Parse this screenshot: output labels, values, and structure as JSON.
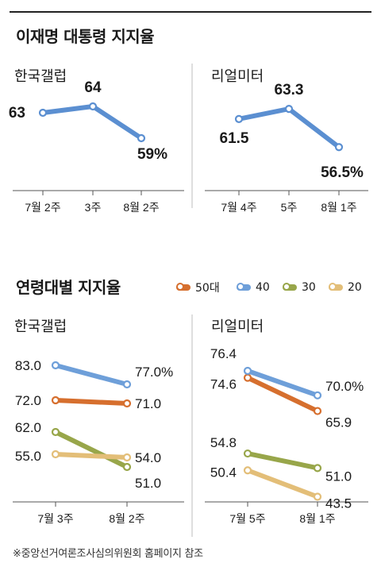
{
  "section1": {
    "title": "이재명 대통령 지지율"
  },
  "section2": {
    "title": "연령대별 지지율"
  },
  "legend": [
    {
      "label": "50대",
      "color": "#d66f2e"
    },
    {
      "label": "40",
      "color": "#6e9fd9"
    },
    {
      "label": "30",
      "color": "#98a64a"
    },
    {
      "label": "20",
      "color": "#e3be78"
    }
  ],
  "source": "※중앙선거여론조사심의위원회 홈페이지 참조",
  "chart_data": [
    {
      "type": "line",
      "title": "한국갤럽",
      "categories": [
        "7월 2주",
        "3주",
        "8월 2주"
      ],
      "series": [
        {
          "values": [
            63,
            64,
            59
          ],
          "labels": [
            "63",
            "64",
            "59%"
          ]
        }
      ],
      "ylim": [
        55,
        66
      ],
      "line_color": "#5b8fd1"
    },
    {
      "type": "line",
      "title": "리얼미터",
      "categories": [
        "7월 4주",
        "5주",
        "8월 1주"
      ],
      "series": [
        {
          "values": [
            61.5,
            63.3,
            56.5
          ],
          "labels": [
            "61.5",
            "63.3",
            "56.5%"
          ]
        }
      ],
      "ylim": [
        53,
        66
      ],
      "line_color": "#5b8fd1"
    },
    {
      "type": "line",
      "title": "한국갤럽",
      "categories": [
        "7월 3주",
        "8월 2주"
      ],
      "series": [
        {
          "name": "50대",
          "values": [
            72.0,
            71.0
          ],
          "labels": [
            "72.0",
            "71.0"
          ]
        },
        {
          "name": "40",
          "values": [
            83.0,
            77.0
          ],
          "labels": [
            "83.0",
            "77.0%"
          ]
        },
        {
          "name": "30",
          "values": [
            62.0,
            51.0
          ],
          "labels": [
            "62.0",
            "51.0"
          ]
        },
        {
          "name": "20",
          "values": [
            55.0,
            54.0
          ],
          "labels": [
            "55.0",
            "54.0"
          ]
        }
      ],
      "ylim": [
        45,
        88
      ]
    },
    {
      "type": "line",
      "title": "리얼미터",
      "categories": [
        "7월 5주",
        "8월 1주"
      ],
      "series": [
        {
          "name": "50대",
          "values": [
            74.6,
            65.9
          ],
          "labels": [
            "74.6",
            "65.9"
          ]
        },
        {
          "name": "40",
          "values": [
            76.4,
            70.0
          ],
          "labels": [
            "76.4",
            "70.0%"
          ]
        },
        {
          "name": "30",
          "values": [
            54.8,
            51.0
          ],
          "labels": [
            "54.8",
            "51.0"
          ]
        },
        {
          "name": "20",
          "values": [
            50.4,
            43.5
          ],
          "labels": [
            "50.4",
            "43.5"
          ]
        }
      ],
      "ylim": [
        38,
        82
      ]
    }
  ]
}
